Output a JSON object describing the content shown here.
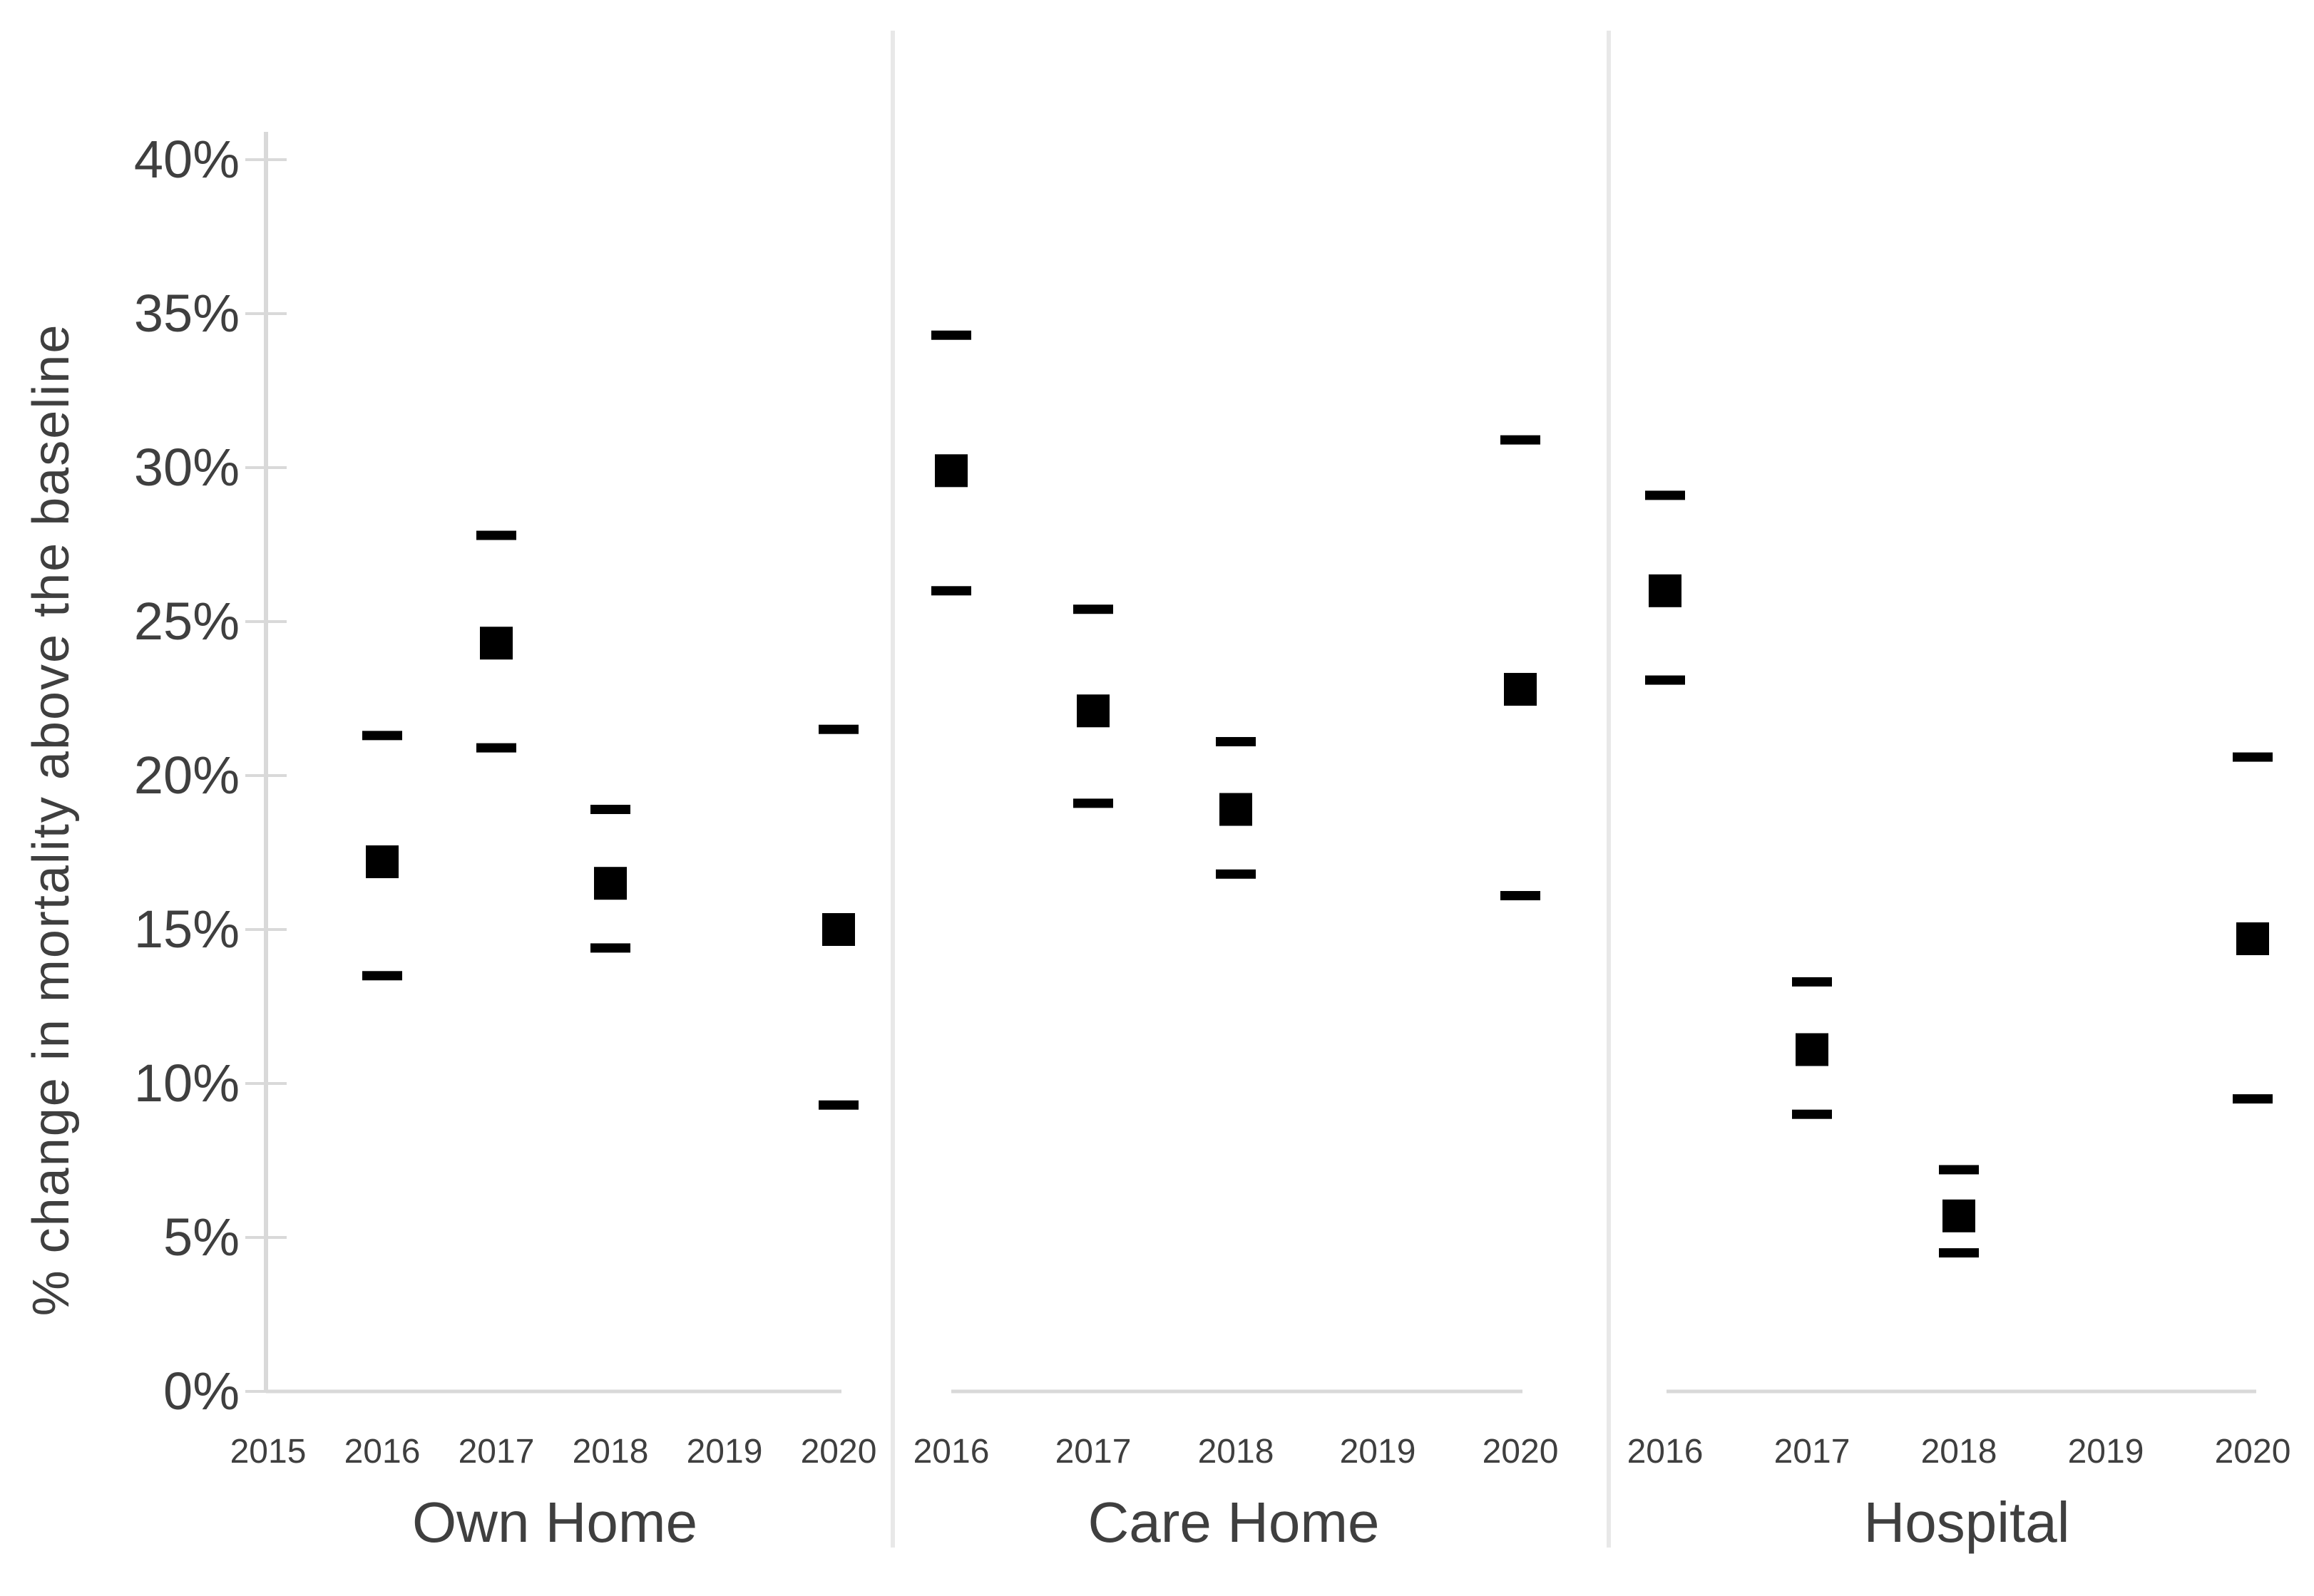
{
  "colors": {
    "background": "#ffffff",
    "marker": "#000000",
    "axis_line": "#d9d9d9",
    "panel_divider": "#e8e8e8",
    "baseline": "#d9d9d9",
    "text": "#3f3f3f"
  },
  "chart_data": {
    "type": "scatter",
    "subtype": "dot-plot-with-error-bars",
    "title": "",
    "xlabel": "",
    "ylabel": "% change in mortality above the baseline",
    "ylim": [
      0,
      40
    ],
    "ytick_step": 5,
    "ytick_labels": [
      "0%",
      "5%",
      "10%",
      "15%",
      "20%",
      "25%",
      "30%",
      "35%",
      "40%"
    ],
    "grid": false,
    "legend": false,
    "marker_shape": "filled-square",
    "error_bar_cap": "horizontal-dash",
    "panels": [
      {
        "label": "Own Home",
        "categories": [
          "2015",
          "2016",
          "2017",
          "2018",
          "2019",
          "2020"
        ],
        "series": [
          {
            "year": "2016",
            "value": 17.2,
            "ci_low": 13.5,
            "ci_high": 21.3
          },
          {
            "year": "2017",
            "value": 24.3,
            "ci_low": 20.9,
            "ci_high": 27.8
          },
          {
            "year": "2018",
            "value": 16.5,
            "ci_low": 14.4,
            "ci_high": 18.9
          },
          {
            "year": "2020",
            "value": 15.0,
            "ci_low": 9.3,
            "ci_high": 21.5
          }
        ]
      },
      {
        "label": "Care Home",
        "categories": [
          "2016",
          "2017",
          "2018",
          "2019",
          "2020"
        ],
        "series": [
          {
            "year": "2016",
            "value": 29.9,
            "ci_low": 26.0,
            "ci_high": 34.3
          },
          {
            "year": "2017",
            "value": 22.1,
            "ci_low": 19.1,
            "ci_high": 25.4
          },
          {
            "year": "2018",
            "value": 18.9,
            "ci_low": 16.8,
            "ci_high": 21.1
          },
          {
            "year": "2020",
            "value": 22.8,
            "ci_low": 16.1,
            "ci_high": 30.9
          }
        ]
      },
      {
        "label": "Hospital",
        "categories": [
          "2016",
          "2017",
          "2018",
          "2019",
          "2020"
        ],
        "series": [
          {
            "year": "2016",
            "value": 26.0,
            "ci_low": 23.1,
            "ci_high": 29.1
          },
          {
            "year": "2017",
            "value": 11.1,
            "ci_low": 9.0,
            "ci_high": 13.3
          },
          {
            "year": "2018",
            "value": 5.7,
            "ci_low": 4.5,
            "ci_high": 7.2
          },
          {
            "year": "2020",
            "value": 14.7,
            "ci_low": 9.5,
            "ci_high": 20.6
          }
        ]
      }
    ]
  }
}
